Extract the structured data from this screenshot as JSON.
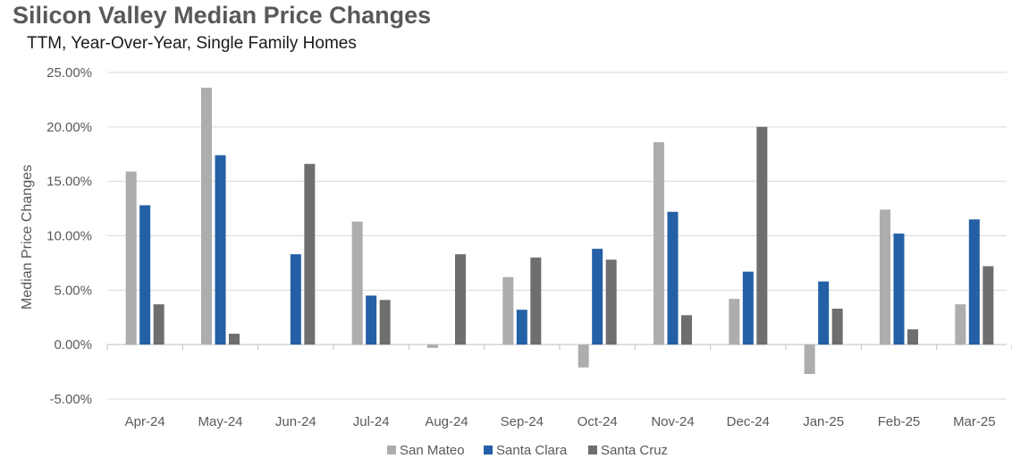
{
  "chart_data": {
    "type": "bar",
    "title": "Silicon Valley Median Price Changes",
    "subtitle": "TTM, Year-Over-Year, Single Family Homes",
    "ylabel": "Median Price Changes",
    "xlabel": "",
    "ylim": [
      -5,
      25
    ],
    "yticks": [
      25,
      20,
      15,
      10,
      5,
      0,
      -5
    ],
    "ytick_labels": [
      "25.00%",
      "20.00%",
      "15.00%",
      "10.00%",
      "5.00%",
      "0.00%",
      "-5.00%"
    ],
    "categories": [
      "Apr-24",
      "May-24",
      "Jun-24",
      "Jul-24",
      "Aug-24",
      "Sep-24",
      "Oct-24",
      "Nov-24",
      "Dec-24",
      "Jan-25",
      "Feb-25",
      "Mar-25"
    ],
    "series": [
      {
        "name": "San Mateo",
        "color": "#adadad",
        "values": [
          15.9,
          23.6,
          0,
          11.3,
          -0.3,
          6.2,
          -2.1,
          18.6,
          4.2,
          -2.7,
          12.4,
          3.7
        ]
      },
      {
        "name": "Santa Clara",
        "color": "#2460a6",
        "values": [
          12.8,
          17.4,
          8.3,
          4.5,
          0,
          3.2,
          8.8,
          12.2,
          6.7,
          5.8,
          10.2,
          11.5
        ]
      },
      {
        "name": "Santa Cruz",
        "color": "#6e6e6e",
        "values": [
          3.7,
          1.0,
          16.6,
          4.1,
          8.3,
          8.0,
          7.8,
          2.7,
          20.0,
          3.3,
          1.4,
          7.2
        ]
      }
    ],
    "grid": true,
    "legend_position": "bottom"
  }
}
